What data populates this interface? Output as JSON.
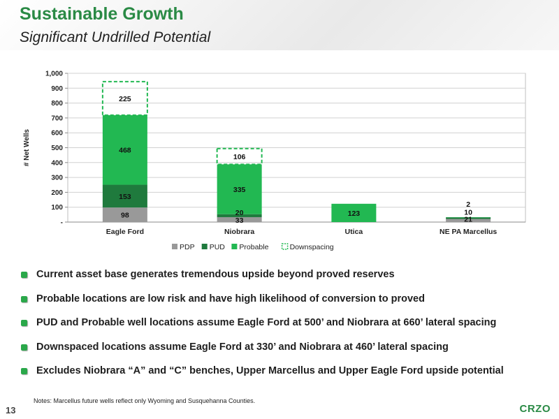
{
  "header": {
    "title": "Sustainable Growth",
    "subtitle": "Significant Undrilled Potential"
  },
  "chart_data": {
    "type": "bar",
    "stacked": true,
    "ylabel": "# Net Wells",
    "ylim": [
      0,
      1000
    ],
    "yticks": [
      "-",
      "100",
      "200",
      "300",
      "400",
      "500",
      "600",
      "700",
      "800",
      "900",
      "1,000"
    ],
    "categories": [
      "Eagle Ford",
      "Niobrara",
      "Utica",
      "NE PA Marcellus"
    ],
    "series": [
      {
        "name": "PDP",
        "color": "#999999",
        "values": [
          98,
          33,
          0,
          21
        ],
        "labels": [
          "98",
          "33",
          "",
          "21"
        ]
      },
      {
        "name": "PUD",
        "color": "#1f7a3d",
        "values": [
          153,
          20,
          0,
          10
        ],
        "labels": [
          "153",
          "20",
          "",
          "10"
        ]
      },
      {
        "name": "Probable",
        "color": "#22b852",
        "values": [
          468,
          335,
          123,
          2
        ],
        "labels": [
          "468",
          "335",
          "123",
          "2"
        ]
      },
      {
        "name": "Downspacing",
        "color": "#22b852",
        "style": "dashed-outline",
        "values": [
          225,
          106,
          0,
          0
        ],
        "labels": [
          "225",
          "106",
          "",
          ""
        ]
      }
    ],
    "grid": true,
    "legend": "bottom"
  },
  "bullets": [
    "Current asset base generates tremendous upside beyond proved reserves",
    "Probable locations are low risk and have high likelihood of conversion to proved",
    "PUD and Probable well locations assume Eagle Ford at 500’ and Niobrara at 660’ lateral spacing",
    "Downspaced locations assume Eagle Ford at 330’ and Niobrara at 460’ lateral spacing",
    "Excludes Niobrara “A” and “C” benches, Upper Marcellus and Upper Eagle Ford upside potential"
  ],
  "footer": {
    "notes": "Notes:  Marcellus future wells reflect only Wyoming and Susquehanna Counties.",
    "page_number": "13",
    "logo": "CRZO"
  }
}
